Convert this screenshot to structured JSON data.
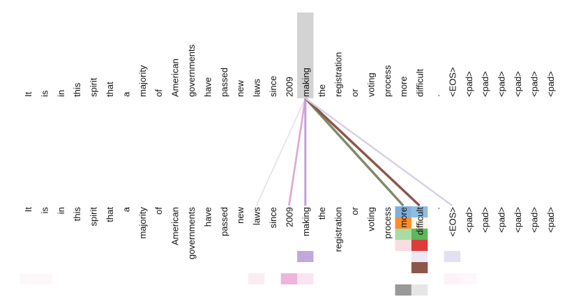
{
  "tokens": [
    "It",
    "is",
    "in",
    "this",
    "spirit",
    "that",
    "a",
    "majority",
    "of",
    "American",
    "governments",
    "have",
    "passed",
    "new",
    "laws",
    "since",
    "2009",
    "making",
    "the",
    "registration",
    "or",
    "voting",
    "process",
    "more",
    "difficult",
    ".",
    "<EOS>",
    "<pad>",
    "<pad>",
    "<pad>",
    "<pad>",
    "<pad>",
    "<pad>"
  ],
  "selected_token_index": 17,
  "highlight_color": "#d3d3d3",
  "attention_links": [
    {
      "to": 14,
      "color": "#e8e0ea",
      "weight": 0.3
    },
    {
      "to": 16,
      "color": "#e0a8d8",
      "weight": 0.7
    },
    {
      "to": 17,
      "color": "#c0a0d8",
      "weight": 0.8
    },
    {
      "to": 23,
      "color": "#7f8a6a",
      "weight": 1.0
    },
    {
      "to": 24,
      "color": "#8c564b",
      "weight": 1.0
    },
    {
      "to": 26,
      "color": "#d8d0e8",
      "weight": 0.6
    }
  ],
  "head_blocks": [
    {
      "token": 23,
      "head": 0,
      "color": "#7fb0dc"
    },
    {
      "token": 24,
      "head": 0,
      "color": "#8fbde0"
    },
    {
      "token": 23,
      "head": 1,
      "color": "#ff8c2a"
    },
    {
      "token": 24,
      "head": 1,
      "color": "#fff6e6"
    },
    {
      "token": 23,
      "head": 2,
      "color": "#a8dca0"
    },
    {
      "token": 24,
      "head": 2,
      "color": "#5cb85c"
    },
    {
      "token": 23,
      "head": 3,
      "color": "#f9dde0"
    },
    {
      "token": 24,
      "head": 3,
      "color": "#dd3c3c"
    },
    {
      "token": 17,
      "head": 4,
      "color": "#c0a8dc"
    },
    {
      "token": 24,
      "head": 4,
      "color": "#ece8f4"
    },
    {
      "token": 26,
      "head": 4,
      "color": "#e4e0f0"
    },
    {
      "token": 24,
      "head": 5,
      "color": "#8c564b"
    },
    {
      "token": 0,
      "head": 6,
      "color": "#fcf8fa"
    },
    {
      "token": 1,
      "head": 6,
      "color": "#fcf8fa"
    },
    {
      "token": 14,
      "head": 6,
      "color": "#fcecf2"
    },
    {
      "token": 16,
      "head": 6,
      "color": "#f0b4dc"
    },
    {
      "token": 17,
      "head": 6,
      "color": "#fae4f2"
    },
    {
      "token": 26,
      "head": 6,
      "color": "#fcf2f8"
    },
    {
      "token": 27,
      "head": 6,
      "color": "#fdf6fa"
    },
    {
      "token": 23,
      "head": 7,
      "color": "#999999"
    },
    {
      "token": 24,
      "head": 7,
      "color": "#e6e6e6"
    }
  ]
}
